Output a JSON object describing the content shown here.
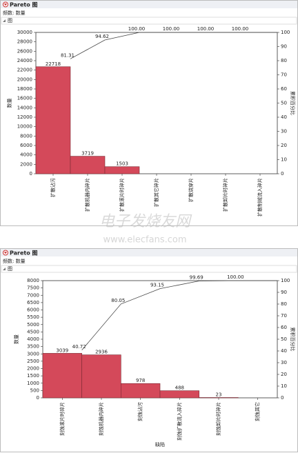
{
  "chart_data": [
    {
      "type": "pareto",
      "window_title": "Pareto 图",
      "frequency_label": "频数: 数量",
      "panel_title": "图",
      "ylabel": "数量",
      "y2label": "累积百分比",
      "categories": [
        "扩散沾污",
        "扩散机器内碎片",
        "扩散滚片时碎片",
        "扩散其它碎片",
        "扩散烧穿片",
        "扩散卸片时碎片",
        "扩散制绒流入碎片"
      ],
      "values": [
        22718,
        3719,
        1503,
        0,
        0,
        0,
        0
      ],
      "color": "#d4495a",
      "cumulative": [
        81.31,
        94.62,
        100,
        100,
        100,
        100,
        100
      ],
      "cumulative_labels": [
        "81.31",
        "94.62",
        "100.00",
        "100.00",
        "100.00",
        "100.00",
        null
      ],
      "ylim": [
        0,
        30000
      ],
      "yticks": [
        0,
        2000,
        4000,
        6000,
        8000,
        10000,
        12000,
        14000,
        16000,
        18000,
        20000,
        22000,
        24000,
        26000,
        28000,
        30000
      ],
      "y2lim": [
        0,
        100
      ],
      "y2ticks": [
        0,
        10,
        20,
        30,
        40,
        50,
        60,
        70,
        80,
        90,
        100
      ]
    },
    {
      "type": "pareto",
      "window_title": "Pareto 图",
      "frequency_label": "频数: 数量",
      "panel_title": "图",
      "ylabel": "数量",
      "y2label": "累积百分比",
      "xlabel": "缺陷",
      "categories": [
        "刻蚀滚片时碎片",
        "刻蚀机器内碎片",
        "刻蚀沾污",
        "刻蚀扩散流入碎片",
        "刻蚀卸片时碎片",
        "刻蚀其它"
      ],
      "values": [
        3039,
        2936,
        978,
        488,
        23,
        0
      ],
      "color": "#d4495a",
      "cumulative": [
        40.72,
        80.05,
        93.15,
        99.69,
        100,
        100
      ],
      "cumulative_labels": [
        "40.72",
        "80.05",
        "93.15",
        "99.69",
        "100.00",
        null
      ],
      "ylim": [
        0,
        8000
      ],
      "yticks": [
        0,
        500,
        1000,
        1500,
        2000,
        2500,
        3000,
        3500,
        4000,
        4500,
        5000,
        5500,
        6000,
        6500,
        7000,
        7500,
        8000
      ],
      "y2lim": [
        0,
        100
      ],
      "y2ticks": [
        0,
        10,
        20,
        30,
        40,
        50,
        60,
        70,
        80,
        90,
        100
      ]
    }
  ],
  "watermark": {
    "text": "电子发烧友网",
    "url": "www.elecfans.com"
  }
}
